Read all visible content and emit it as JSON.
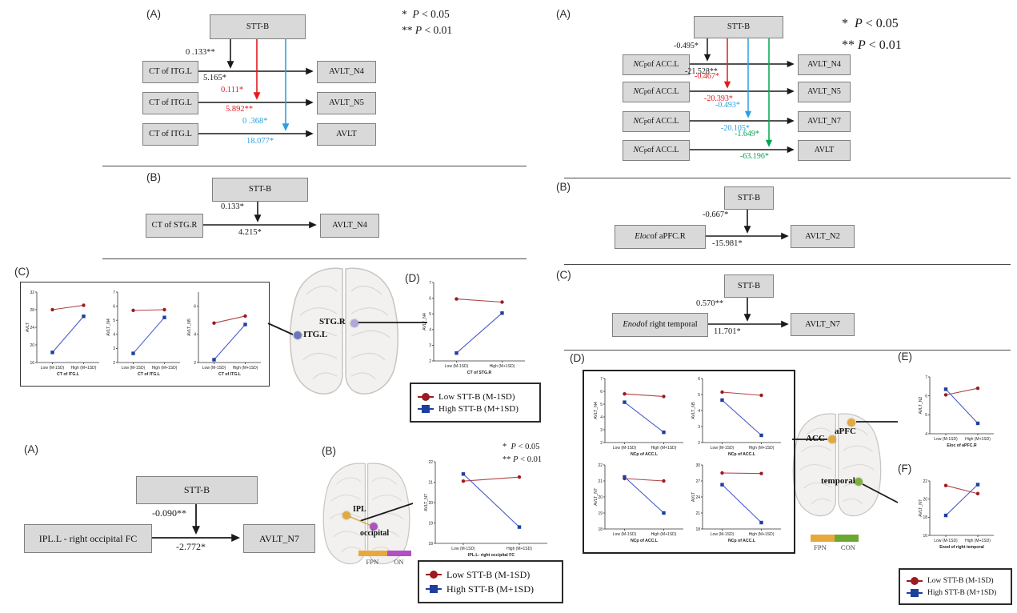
{
  "panels": {
    "la": "(A)",
    "lb": "(B)",
    "lc": "(C)",
    "ld": "(D)",
    "ba": "(A)",
    "bb": "(B)",
    "ra": "(A)",
    "rb": "(B)",
    "rc": "(C)",
    "rd": "(D)",
    "re": "(E)",
    "rf": "(F)"
  },
  "sig": {
    "p05": "*&nbsp;&nbsp;<i>P</i> &lt; 0.05",
    "p01": "**&nbsp;<i>P</i> &lt; 0.01"
  },
  "legend": {
    "low": "Low STT-B (M-1SD)",
    "high": "High STT-B (M+1SD)"
  },
  "colors": {
    "arrow_black": "#1a1a1a",
    "arrow_red": "#e3191c",
    "arrow_blue": "#2e9fe0",
    "arrow_green": "#00a551",
    "box_fill": "#d9d9d9",
    "box_border": "#808080",
    "series_red_line": "#b04343",
    "series_red_marker": "#9c1a21",
    "series_blue_line": "#4a5cc9",
    "series_blue_marker": "#1e3f9e",
    "fpn_yellow": "#e8a93c",
    "on_purple": "#b14fc4",
    "con_green": "#6aa832"
  },
  "d": {
    "la": {
      "stt": "STT-B",
      "rows": [
        {
          "m": "CT of ITG.L",
          "o": "AVLT_N4",
          "a": "0 .133**",
          "b": "5.165*"
        },
        {
          "m": "CT of ITG.L",
          "o": "AVLT_N5",
          "a": "0.111*",
          "b": "5.892**"
        },
        {
          "m": "CT of ITG.L",
          "o": "AVLT",
          "a": "0 .368*",
          "b": "18.077*"
        }
      ]
    },
    "lb": {
      "stt": "STT-B",
      "m": "CT of STG.R",
      "o": "AVLT_N4",
      "a": "0.133*",
      "b": "4.215*"
    },
    "ba": {
      "stt": "STT-B",
      "m": "IPL.L - right occipital FC",
      "o": "AVLT_N7",
      "a": "-0.090**",
      "b": "-2.772*"
    },
    "ra": {
      "stt": "STT-B",
      "rows": [
        {
          "m_html": "<i>NC</i><sub>p</sub> of ACC.L",
          "m": "NCp of ACC.L",
          "o": "AVLT_N4",
          "a": "-0.495*",
          "b": "-21.528**"
        },
        {
          "m_html": "<i>NC</i><sub>p</sub> of ACC.L",
          "m": "NCp of ACC.L",
          "o": "AVLT_N5",
          "a": "-0.467*",
          "b": "-20.393*"
        },
        {
          "m_html": "<i>NC</i><sub>p</sub> of ACC.L",
          "m": "NCp of ACC.L",
          "o": "AVLT_N7",
          "a": "-0.493*",
          "b": "-20.105*"
        },
        {
          "m_html": "<i>NC</i><sub>p</sub> of ACC.L",
          "m": "NCp of ACC.L",
          "o": "AVLT",
          "a": "-1.649*",
          "b": "-63.196*"
        }
      ]
    },
    "rb": {
      "stt": "STT-B",
      "m_html": "<i>Eloc</i> of aPFC.R",
      "m": "Eloc of aPFC.R",
      "o": "AVLT_N2",
      "a": "-0.667*",
      "b": "-15.981*"
    },
    "rc": {
      "stt": "STT-B",
      "m_html": "<i>Enod</i> of right temporal",
      "m": "Enod of right temporal",
      "o": "AVLT_N7",
      "a": "0.570**",
      "b": "11.701*"
    }
  },
  "brains": {
    "b1": {
      "region1": "ITG.L",
      "region2": "STG.R"
    },
    "b2": {
      "region1": "IPL",
      "region2": "occipital",
      "bar": [
        "FPN",
        "ON"
      ]
    },
    "b3": {
      "region1": "ACC",
      "region2": "aPFC",
      "region3": "temporal",
      "bar": [
        "FPN",
        "CON"
      ]
    }
  },
  "chart_data": [
    {
      "id": "lc1",
      "type": "line",
      "title": "",
      "ylabel": "AVLT",
      "xlabel": "CT of ITG.L",
      "categories": [
        "Low (M-1SD)",
        "High (M+1SD)"
      ],
      "ylim": [
        16,
        32
      ],
      "yticks": [
        16,
        20,
        24,
        28,
        32
      ],
      "series": [
        {
          "name": "Low STT-B (M-1SD)",
          "color": "red",
          "marker": "circle",
          "values": [
            28,
            29
          ]
        },
        {
          "name": "High STT-B (M+1SD)",
          "color": "blue",
          "marker": "square",
          "values": [
            18.3,
            26.5
          ]
        }
      ]
    },
    {
      "id": "lc2",
      "type": "line",
      "title": "",
      "ylabel": "AVLT_N4",
      "xlabel": "CT of ITG.L",
      "categories": [
        "Low (M-1SD)",
        "High (M+1SD)"
      ],
      "ylim": [
        2,
        7
      ],
      "yticks": [
        2,
        3,
        4,
        5,
        6,
        7
      ],
      "series": [
        {
          "name": "Low STT-B (M-1SD)",
          "color": "red",
          "marker": "circle",
          "values": [
            5.7,
            5.75
          ]
        },
        {
          "name": "High STT-B (M+1SD)",
          "color": "blue",
          "marker": "square",
          "values": [
            2.65,
            5.2
          ]
        }
      ]
    },
    {
      "id": "lc3",
      "type": "line",
      "title": "",
      "ylabel": "AVLT_N5",
      "xlabel": "CT of ITG.L",
      "categories": [
        "Low (M-1SD)",
        "High (M+1SD)"
      ],
      "ylim": [
        2,
        7
      ],
      "yticks": [
        2,
        4,
        6
      ],
      "series": [
        {
          "name": "Low STT-B (M-1SD)",
          "color": "red",
          "marker": "circle",
          "values": [
            4.8,
            5.3
          ]
        },
        {
          "name": "High STT-B (M+1SD)",
          "color": "blue",
          "marker": "square",
          "values": [
            2.2,
            4.7
          ]
        }
      ]
    },
    {
      "id": "ld",
      "type": "line",
      "title": "",
      "ylabel": "AVLT_N4",
      "xlabel": "CT of STG.R",
      "categories": [
        "Low (M-1SD)",
        "High (M+1SD)"
      ],
      "ylim": [
        2,
        7
      ],
      "yticks": [
        2,
        3,
        4,
        5,
        6,
        7
      ],
      "series": [
        {
          "name": "Low STT-B (M-1SD)",
          "color": "red",
          "marker": "circle",
          "values": [
            5.95,
            5.75
          ]
        },
        {
          "name": "High STT-B (M+1SD)",
          "color": "blue",
          "marker": "square",
          "values": [
            2.5,
            5.05
          ]
        }
      ]
    },
    {
      "id": "blb",
      "type": "line",
      "title": "",
      "ylabel": "AVLT_N7",
      "xlabel": "IPL.L- right occipital FC",
      "categories": [
        "Low (M-1SD)",
        "High (M+1SD)"
      ],
      "ylim": [
        18,
        22
      ],
      "yticks": [
        18,
        19,
        20,
        21,
        22
      ],
      "series": [
        {
          "name": "Low STT-B (M-1SD)",
          "color": "red",
          "marker": "circle",
          "values": [
            21.05,
            21.25
          ]
        },
        {
          "name": "High STT-B (M+1SD)",
          "color": "blue",
          "marker": "square",
          "values": [
            21.4,
            18.8
          ]
        }
      ]
    },
    {
      "id": "rd1",
      "type": "line",
      "title": "",
      "ylabel": "AVLT_N4",
      "xlabel": "NCp of ACC.L",
      "categories": [
        "Low (M-1SD)",
        "High (M+1SD)"
      ],
      "ylim": [
        2,
        7
      ],
      "yticks": [
        2,
        3,
        4,
        5,
        6,
        7
      ],
      "series": [
        {
          "name": "Low STT-B (M-1SD)",
          "color": "red",
          "marker": "circle",
          "values": [
            5.8,
            5.6
          ]
        },
        {
          "name": "High STT-B (M+1SD)",
          "color": "blue",
          "marker": "square",
          "values": [
            5.15,
            2.8
          ]
        }
      ]
    },
    {
      "id": "rd2",
      "type": "line",
      "title": "",
      "ylabel": "AVLT_N5",
      "xlabel": "NCp of ACC.L",
      "categories": [
        "Low (M-1SD)",
        "High (M+1SD)"
      ],
      "ylim": [
        2,
        6
      ],
      "yticks": [
        2,
        3,
        4,
        5,
        6
      ],
      "series": [
        {
          "name": "Low STT-B (M-1SD)",
          "color": "red",
          "marker": "circle",
          "values": [
            5.15,
            4.95
          ]
        },
        {
          "name": "High STT-B (M+1SD)",
          "color": "blue",
          "marker": "square",
          "values": [
            4.65,
            2.45
          ]
        }
      ]
    },
    {
      "id": "rd3",
      "type": "line",
      "title": "",
      "ylabel": "AVLT_N7",
      "xlabel": "NCp of ACC.L",
      "categories": [
        "Low (M-1SD)",
        "High (M+1SD)"
      ],
      "ylim": [
        18,
        22
      ],
      "yticks": [
        18,
        19,
        20,
        21,
        22
      ],
      "series": [
        {
          "name": "Low STT-B (M-1SD)",
          "color": "red",
          "marker": "circle",
          "values": [
            21.15,
            21.0
          ]
        },
        {
          "name": "High STT-B (M+1SD)",
          "color": "blue",
          "marker": "square",
          "values": [
            21.25,
            19.0
          ]
        }
      ]
    },
    {
      "id": "rd4",
      "type": "line",
      "title": "",
      "ylabel": "AVLT",
      "xlabel": "NCp of ACC.L",
      "categories": [
        "Low (M-1SD)",
        "High (M+1SD)"
      ],
      "ylim": [
        18,
        30
      ],
      "yticks": [
        18,
        21,
        24,
        27,
        30
      ],
      "series": [
        {
          "name": "Low STT-B (M-1SD)",
          "color": "red",
          "marker": "circle",
          "values": [
            28.5,
            28.4
          ]
        },
        {
          "name": "High STT-B (M+1SD)",
          "color": "blue",
          "marker": "square",
          "values": [
            26.3,
            19.2
          ]
        }
      ]
    },
    {
      "id": "re",
      "type": "line",
      "title": "",
      "ylabel": "AVLT_N2",
      "xlabel": "Eloc of aPFC.R",
      "categories": [
        "Low (M-1SD)",
        "High (M+1SD)"
      ],
      "ylim": [
        4,
        7
      ],
      "yticks": [
        4,
        5,
        6,
        7
      ],
      "series": [
        {
          "name": "Low STT-B (M-1SD)",
          "color": "red",
          "marker": "circle",
          "values": [
            6.05,
            6.4
          ]
        },
        {
          "name": "High STT-B (M+1SD)",
          "color": "blue",
          "marker": "square",
          "values": [
            6.35,
            4.55
          ]
        }
      ]
    },
    {
      "id": "rf",
      "type": "line",
      "title": "",
      "ylabel": "AVLT_N7",
      "xlabel": "Enod of right temporal",
      "categories": [
        "Low (M-1SD)",
        "High (M+1SD)"
      ],
      "ylim": [
        16,
        22
      ],
      "yticks": [
        16,
        18,
        20,
        22
      ],
      "series": [
        {
          "name": "Low STT-B (M-1SD)",
          "color": "red",
          "marker": "circle",
          "values": [
            21.5,
            20.6
          ]
        },
        {
          "name": "High STT-B (M+1SD)",
          "color": "blue",
          "marker": "square",
          "values": [
            18.2,
            21.6
          ]
        }
      ]
    }
  ]
}
